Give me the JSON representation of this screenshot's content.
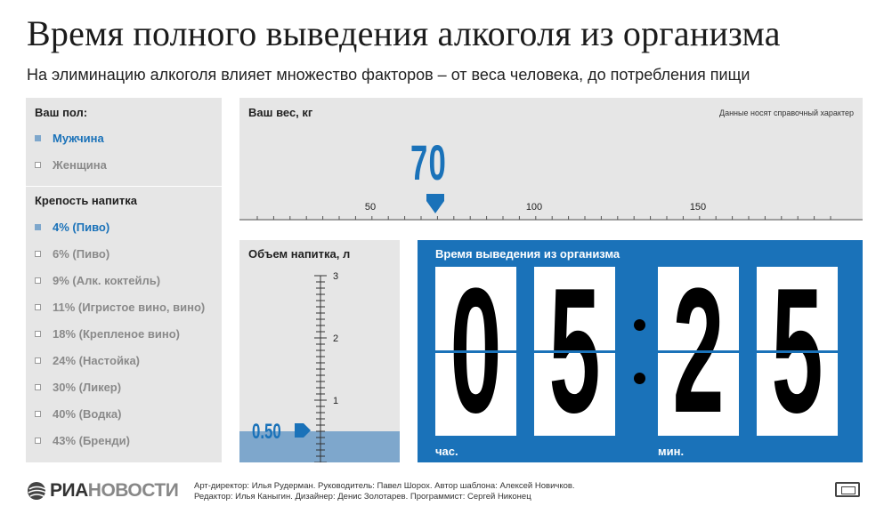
{
  "header": {
    "title": "Время полного выведения алкоголя из организма",
    "subtitle": "На элиминацию алкоголя влияет множество факторов – от веса человека, до потребления пищи"
  },
  "gender": {
    "title": "Ваш пол:",
    "options": [
      {
        "label": "Мужчина",
        "selected": true
      },
      {
        "label": "Женщина",
        "selected": false
      }
    ]
  },
  "strength": {
    "title": "Крепость напитка",
    "options": [
      {
        "label": "4% (Пиво)",
        "selected": true
      },
      {
        "label": "6% (Пиво)",
        "selected": false
      },
      {
        "label": "9% (Алк. коктейль)",
        "selected": false
      },
      {
        "label": "11% (Игристое вино, вино)",
        "selected": false
      },
      {
        "label": "18% (Крепленое вино)",
        "selected": false
      },
      {
        "label": "24% (Настойка)",
        "selected": false
      },
      {
        "label": "30% (Ликер)",
        "selected": false
      },
      {
        "label": "40% (Водка)",
        "selected": false
      },
      {
        "label": "43% (Бренди)",
        "selected": false
      }
    ]
  },
  "weight": {
    "title": "Ваш вес, кг",
    "note": "Данные носят справочный характер",
    "value": "70",
    "scale_labels": [
      "50",
      "100",
      "150"
    ]
  },
  "volume": {
    "title": "Объем напитка, л",
    "value": "0.50",
    "scale_labels": [
      "3",
      "2",
      "1"
    ]
  },
  "time": {
    "title": "Время выведения из организма",
    "hours": [
      "0",
      "5"
    ],
    "minutes": [
      "2",
      "5"
    ],
    "hours_label": "час.",
    "minutes_label": "мин."
  },
  "footer": {
    "logo_bold": "РИА",
    "logo_light": "НОВОСТИ",
    "credits_line1": "Арт-директор: Илья Рудерман. Руководитель: Павел Шорох. Автор шаблона: Алексей Новичков.",
    "credits_line2": "Редактор: Илья Каныгин. Дизайнер: Денис Золотарев. Программист: Сергей Никонец"
  },
  "colors": {
    "accent": "#1a72b9",
    "panel": "#e6e6e6",
    "fill": "#7ea7cc"
  }
}
